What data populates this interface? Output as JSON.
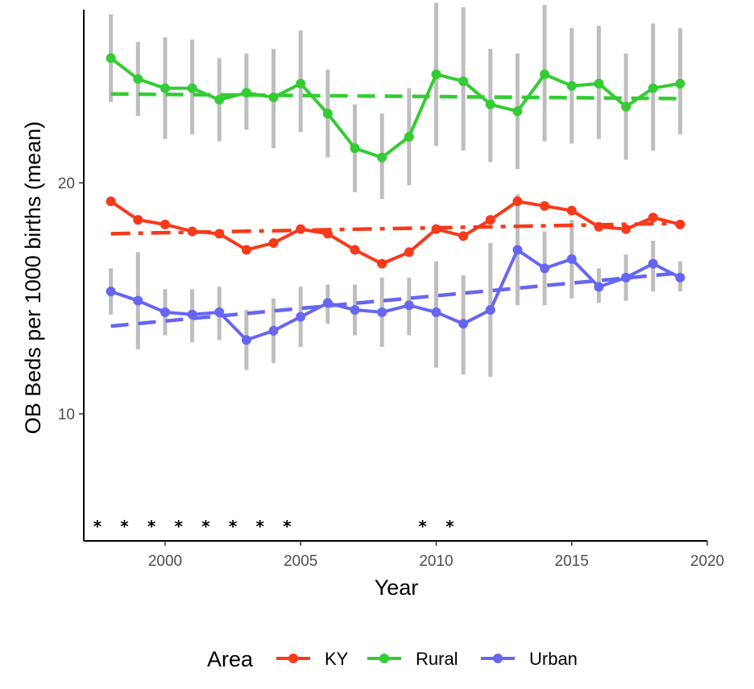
{
  "chart_data": {
    "type": "line",
    "xlabel": "Year",
    "ylabel": "OB Beds per 1000 births (mean)",
    "xlim": [
      1997,
      2020
    ],
    "ylim": [
      4.5,
      27.5
    ],
    "x_ticks": [
      2000,
      2005,
      2010,
      2015,
      2020
    ],
    "y_ticks": [
      10,
      20
    ],
    "grid": false,
    "legend": {
      "title": "Area",
      "position": "bottom"
    },
    "x": [
      1998,
      1999,
      2000,
      2001,
      2002,
      2003,
      2004,
      2005,
      2006,
      2007,
      2008,
      2009,
      2010,
      2011,
      2012,
      2013,
      2014,
      2015,
      2016,
      2017,
      2018,
      2019
    ],
    "series": [
      {
        "name": "KY",
        "color": "#f8391a",
        "trend_style": "dashdot",
        "values": [
          19.2,
          18.4,
          18.2,
          17.9,
          17.8,
          17.1,
          17.4,
          18.0,
          17.8,
          17.1,
          16.5,
          17.0,
          18.0,
          17.7,
          18.4,
          19.2,
          19.0,
          18.8,
          18.1,
          18.0,
          18.5,
          18.2
        ],
        "trend": {
          "x": [
            1998,
            2019
          ],
          "y": [
            17.8,
            18.25
          ]
        }
      },
      {
        "name": "Rural",
        "color": "#33cc33",
        "trend_style": "dashed",
        "values": [
          25.4,
          24.5,
          24.1,
          24.1,
          23.6,
          23.9,
          23.7,
          24.3,
          23.0,
          21.5,
          21.1,
          22.0,
          24.7,
          24.4,
          23.4,
          23.1,
          24.7,
          24.2,
          24.3,
          23.3,
          24.1,
          24.3
        ],
        "error_low": [
          23.5,
          22.9,
          21.9,
          22.1,
          21.8,
          22.3,
          21.5,
          22.2,
          21.1,
          19.6,
          19.3,
          19.9,
          21.6,
          21.4,
          20.9,
          20.6,
          21.8,
          21.7,
          21.9,
          21.0,
          21.4,
          22.1
        ],
        "error_high": [
          27.3,
          26.1,
          26.3,
          26.2,
          25.4,
          25.6,
          25.8,
          26.6,
          24.9,
          23.4,
          23.0,
          24.1,
          27.8,
          27.6,
          25.8,
          25.6,
          27.7,
          26.7,
          26.8,
          25.6,
          26.9,
          26.7
        ],
        "trend": {
          "x": [
            1998,
            2019
          ],
          "y": [
            23.85,
            23.65
          ]
        }
      },
      {
        "name": "Urban",
        "color": "#6666f2",
        "trend_style": "dashed",
        "values": [
          15.3,
          14.9,
          14.4,
          14.3,
          14.4,
          13.2,
          13.6,
          14.2,
          14.8,
          14.5,
          14.4,
          14.7,
          14.4,
          13.9,
          14.5,
          17.1,
          16.3,
          16.7,
          15.5,
          15.9,
          16.5,
          15.9
        ],
        "error_low": [
          14.3,
          12.8,
          13.4,
          13.1,
          13.2,
          11.9,
          12.2,
          12.9,
          13.9,
          13.4,
          12.9,
          13.4,
          12.0,
          11.7,
          11.6,
          14.7,
          14.7,
          15.0,
          14.8,
          14.9,
          15.3,
          15.3
        ],
        "error_high": [
          16.3,
          17.0,
          15.4,
          15.4,
          15.5,
          14.5,
          15.0,
          15.5,
          15.6,
          15.6,
          15.9,
          15.9,
          16.6,
          16.0,
          17.4,
          19.5,
          17.9,
          18.4,
          16.3,
          16.9,
          17.5,
          16.6
        ],
        "trend": {
          "x": [
            1998,
            2019
          ],
          "y": [
            13.8,
            16.1
          ]
        }
      }
    ],
    "significance_markers": {
      "symbol": "*",
      "y": 5.2,
      "x": [
        1997.5,
        1998.5,
        1999.5,
        2000.5,
        2001.5,
        2002.5,
        2003.5,
        2004.5,
        2009.5,
        2010.5
      ]
    }
  }
}
